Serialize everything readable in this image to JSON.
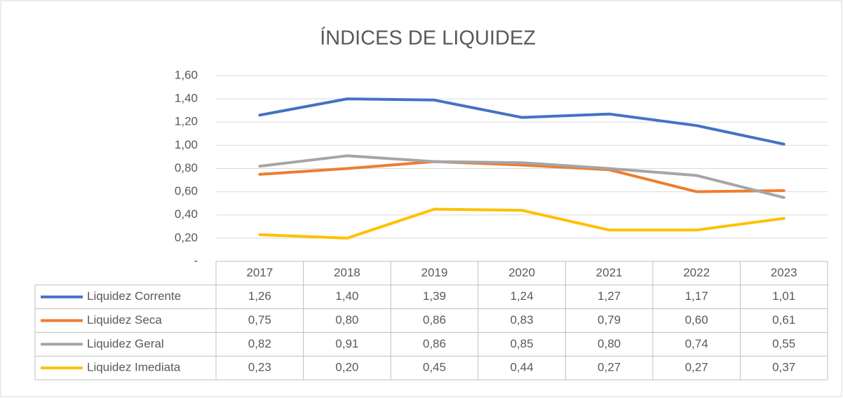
{
  "chart_data": {
    "type": "line",
    "title": "ÍNDICES DE LIQUIDEZ",
    "categories": [
      "2017",
      "2018",
      "2019",
      "2020",
      "2021",
      "2022",
      "2023"
    ],
    "series": [
      {
        "name": "Liquidez Corrente",
        "color": "#4472c4",
        "values": [
          1.26,
          1.4,
          1.39,
          1.24,
          1.27,
          1.17,
          1.01
        ],
        "value_labels": [
          "1,26",
          "1,40",
          "1,39",
          "1,24",
          "1,27",
          "1,17",
          "1,01"
        ]
      },
      {
        "name": "Liquidez Seca",
        "color": "#ed7d31",
        "values": [
          0.75,
          0.8,
          0.86,
          0.83,
          0.79,
          0.6,
          0.61
        ],
        "value_labels": [
          "0,75",
          "0,80",
          "0,86",
          "0,83",
          "0,79",
          "0,60",
          "0,61"
        ]
      },
      {
        "name": "Liquidez Geral",
        "color": "#a5a5a5",
        "values": [
          0.82,
          0.91,
          0.86,
          0.85,
          0.8,
          0.74,
          0.55
        ],
        "value_labels": [
          "0,82",
          "0,91",
          "0,86",
          "0,85",
          "0,80",
          "0,74",
          "0,55"
        ]
      },
      {
        "name": "Liquidez Imediata",
        "color": "#ffc000",
        "values": [
          0.23,
          0.2,
          0.45,
          0.44,
          0.27,
          0.27,
          0.37
        ],
        "value_labels": [
          "0,23",
          "0,20",
          "0,45",
          "0,44",
          "0,27",
          "0,27",
          "0,37"
        ]
      }
    ],
    "ylim": [
      0,
      1.6
    ],
    "yticks": [
      {
        "value": 0,
        "label": "-"
      },
      {
        "value": 0.2,
        "label": "0,20"
      },
      {
        "value": 0.4,
        "label": "0,40"
      },
      {
        "value": 0.6,
        "label": "0,60"
      },
      {
        "value": 0.8,
        "label": "0,80"
      },
      {
        "value": 1.0,
        "label": "1,00"
      },
      {
        "value": 1.2,
        "label": "1,20"
      },
      {
        "value": 1.4,
        "label": "1,40"
      },
      {
        "value": 1.6,
        "label": "1,60"
      }
    ],
    "grid": true,
    "legend": "table"
  }
}
